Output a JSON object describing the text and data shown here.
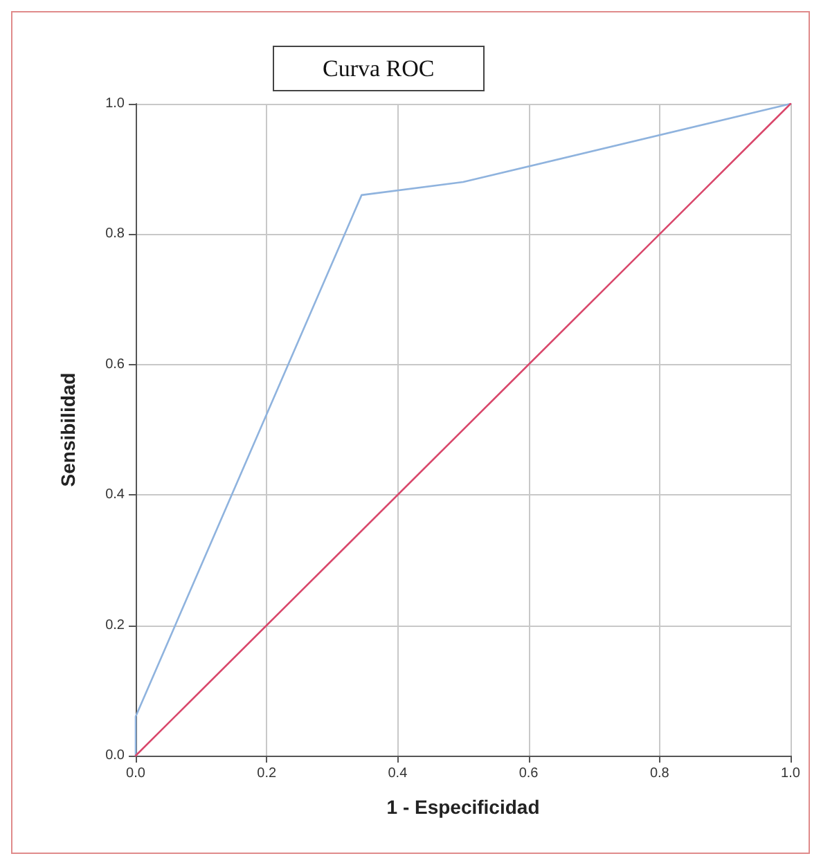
{
  "chart_data": {
    "type": "line",
    "title": "Curva ROC",
    "xlabel": "1 - Especificidad",
    "ylabel": "Sensibilidad",
    "xlim": [
      0,
      1
    ],
    "ylim": [
      0,
      1
    ],
    "xticks": [
      {
        "value": 0,
        "label": "0.0"
      },
      {
        "value": 0.2,
        "label": "0.2"
      },
      {
        "value": 0.4,
        "label": "0.4"
      },
      {
        "value": 0.6,
        "label": "0.6"
      },
      {
        "value": 0.8,
        "label": "0.8"
      },
      {
        "value": 1,
        "label": "1.0"
      }
    ],
    "yticks": [
      {
        "value": 0,
        "label": "0.0"
      },
      {
        "value": 0.2,
        "label": "0.2"
      },
      {
        "value": 0.4,
        "label": "0.4"
      },
      {
        "value": 0.6,
        "label": "0.6"
      },
      {
        "value": 0.8,
        "label": "0.8"
      },
      {
        "value": 1,
        "label": "1.0"
      }
    ],
    "grid": true,
    "marker": "none",
    "line_style": "solid",
    "series": [
      {
        "color": "#8fb3de",
        "x": [
          0,
          0,
          0.345,
          0.5,
          1
        ],
        "values": [
          0,
          0.06,
          0.86,
          0.88,
          1
        ]
      },
      {
        "color": "#d9476b",
        "x": [
          0,
          1
        ],
        "values": [
          0,
          1
        ]
      }
    ]
  }
}
